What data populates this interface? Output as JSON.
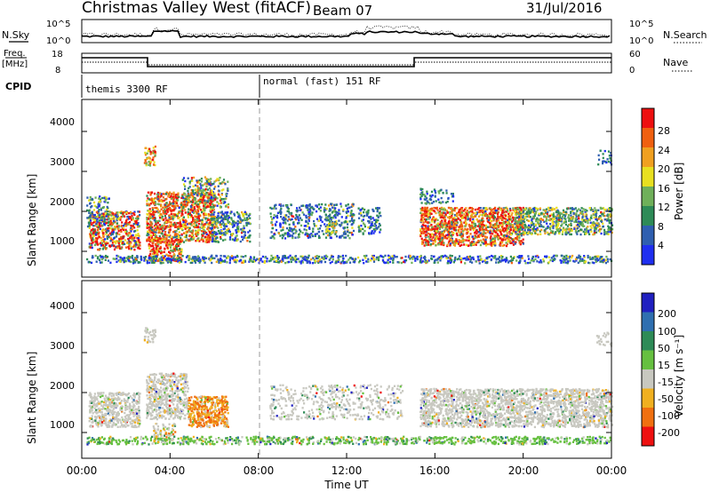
{
  "header": {
    "station": "Christmas Valley West (fitACF)",
    "beam": "Beam 07",
    "date": "31/Jul/2016"
  },
  "top_panels": {
    "nsky_label": "N.Sky",
    "nsky_ticks": [
      "10^5",
      "10^0"
    ],
    "nsearch_label": "N.Search",
    "nsearch_ticks": [
      "10^5",
      "10^0"
    ],
    "freq_label_1": "Freq.",
    "freq_label_2": "[MHz]",
    "freq_ticks": [
      "18",
      "8"
    ],
    "nave_label": "Nave",
    "nave_ticks": [
      "60",
      "0"
    ],
    "cpid_label": "CPID",
    "cpid_modes": [
      "themis 3300 RF",
      "normal (fast) 151 RF"
    ]
  },
  "chart_data": [
    {
      "type": "heatmap",
      "name": "power",
      "ylabel": "Slant Range [km]",
      "yticks": [
        "1000",
        "2000",
        "3000",
        "4000"
      ],
      "colorbar_label": "Power [dB]",
      "colorbar_ticks": [
        "4",
        "8",
        "12",
        "16",
        "20",
        "24",
        "28"
      ],
      "colors": [
        "#1f2ff0",
        "#2f5fb0",
        "#2e8b57",
        "#6fb05a",
        "#e8e020",
        "#f0a020",
        "#f06010",
        "#ee1010"
      ]
    },
    {
      "type": "heatmap",
      "name": "velocity",
      "ylabel": "Slant Range [km]",
      "yticks": [
        "1000",
        "2000",
        "3000",
        "4000"
      ],
      "colorbar_label": "Velocity [m s⁻¹]",
      "colorbar_ticks": [
        "200",
        "100",
        "50",
        "15",
        "-15",
        "-50",
        "-100",
        "-200"
      ],
      "colors": [
        "#2020c0",
        "#2f6fb0",
        "#2e8b57",
        "#66c040",
        "#c8c8c0",
        "#f0b020",
        "#f07010",
        "#ee1010"
      ]
    }
  ],
  "xaxis": {
    "ticks": [
      "00:00",
      "04:00",
      "08:00",
      "12:00",
      "16:00",
      "20:00",
      "00:00"
    ],
    "label": "Time UT"
  }
}
